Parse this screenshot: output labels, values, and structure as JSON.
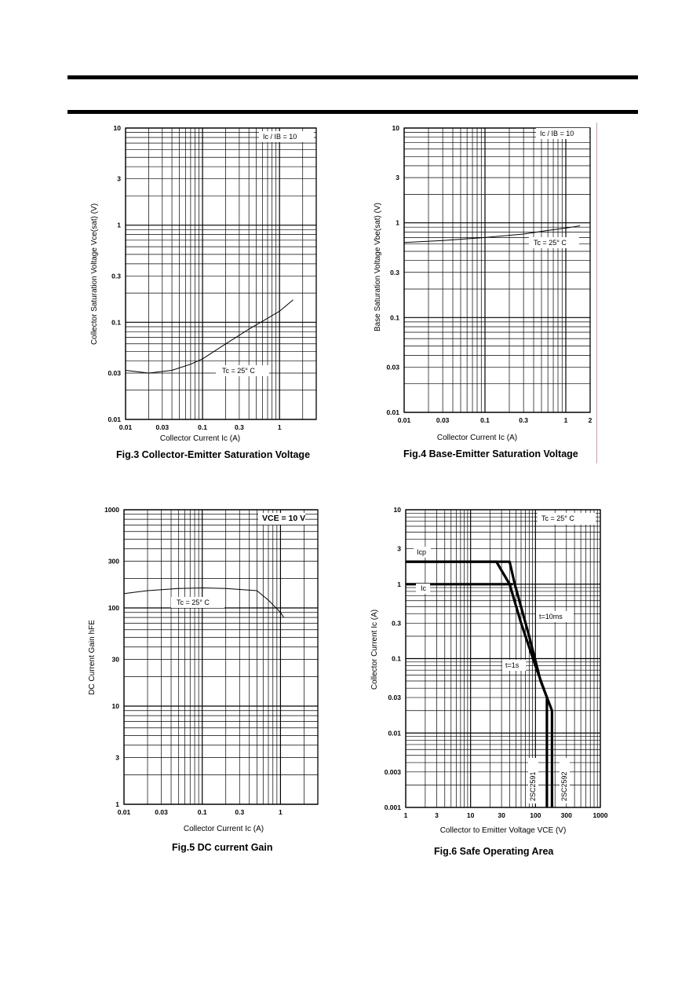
{
  "captions": {
    "fig3": "Fig.3 Collector-Emitter Saturation Voltage",
    "fig4": "Fig.4 Base-Emitter Saturation Voltage",
    "fig5": "Fig.5 DC current Gain",
    "fig6": "Fig.6  Safe Operating Area"
  },
  "chart_data": [
    {
      "id": "fig3",
      "type": "line",
      "xscale": "log",
      "yscale": "log",
      "xlim": [
        0.01,
        3
      ],
      "ylim": [
        0.01,
        10
      ],
      "xticks": [
        0.01,
        0.03,
        0.1,
        0.3,
        1
      ],
      "xticklabels": [
        "0.01",
        "0.03",
        "0.1",
        "0.3",
        "1"
      ],
      "yticks": [
        0.01,
        0.03,
        0.1,
        0.3,
        1,
        3,
        10
      ],
      "yticklabels": [
        "0.01",
        "0.03",
        "0.1",
        "0.3",
        "1",
        "3",
        "10"
      ],
      "xlabel": "Collector Current  Ic  (A)",
      "ylabel": "Collector Saturation Voltage  Vce(sat)  (V)",
      "annotations": [
        "Ic / IB = 10",
        "Tc = 25° C"
      ],
      "series": [
        {
          "x": [
            0.01,
            0.02,
            0.04,
            0.07,
            0.1,
            0.2,
            0.4,
            0.7,
            1.0,
            1.5
          ],
          "y": [
            0.032,
            0.03,
            0.032,
            0.037,
            0.042,
            0.06,
            0.085,
            0.11,
            0.13,
            0.17
          ]
        }
      ]
    },
    {
      "id": "fig4",
      "type": "line",
      "xscale": "log",
      "yscale": "log",
      "xlim": [
        0.01,
        2
      ],
      "ylim": [
        0.01,
        10
      ],
      "xticks": [
        0.01,
        0.03,
        0.1,
        0.3,
        1,
        2
      ],
      "xticklabels": [
        "0.01",
        "0.03",
        "0.1",
        "0.3",
        "1",
        "2"
      ],
      "yticks": [
        0.01,
        0.03,
        0.1,
        0.3,
        1,
        3,
        10
      ],
      "yticklabels": [
        "0.01",
        "0.03",
        "0.1",
        "0.3",
        "1",
        "3",
        "10"
      ],
      "xlabel": "Collector Current  Ic  (A)",
      "ylabel": "Base Saturation Voltage  Vbe(sat)  (V)",
      "annotations": [
        "Ic / IB = 10",
        "Tc = 25° C"
      ],
      "series": [
        {
          "x": [
            0.01,
            0.03,
            0.1,
            0.3,
            0.6,
            1.0,
            1.5
          ],
          "y": [
            0.62,
            0.65,
            0.7,
            0.76,
            0.83,
            0.88,
            0.93
          ]
        }
      ]
    },
    {
      "id": "fig5",
      "type": "line",
      "xscale": "log",
      "yscale": "log",
      "xlim": [
        0.01,
        3
      ],
      "ylim": [
        1,
        1000
      ],
      "xticks": [
        0.01,
        0.03,
        0.1,
        0.3,
        1
      ],
      "xticklabels": [
        "0.01",
        "0.03",
        "0.1",
        "0.3",
        "1"
      ],
      "yticks": [
        1,
        3,
        10,
        30,
        100,
        300,
        1000
      ],
      "yticklabels": [
        "1",
        "3",
        "10",
        "30",
        "100",
        "300",
        "1000"
      ],
      "xlabel": "Collector Current  Ic  (A)",
      "ylabel": "DC Current Gain  hFE",
      "annotations": [
        "VCE = 10 V",
        "Tc = 25° C"
      ],
      "series": [
        {
          "x": [
            0.01,
            0.02,
            0.05,
            0.1,
            0.2,
            0.5,
            0.7,
            1.0,
            1.1
          ],
          "y": [
            140,
            150,
            158,
            160,
            158,
            150,
            120,
            90,
            80
          ]
        }
      ]
    },
    {
      "id": "fig6",
      "type": "line",
      "xscale": "log",
      "yscale": "log",
      "xlim": [
        1,
        1000
      ],
      "ylim": [
        0.001,
        10
      ],
      "xticks": [
        1,
        3,
        10,
        30,
        100,
        300,
        1000
      ],
      "xticklabels": [
        "1",
        "3",
        "10",
        "30",
        "100",
        "300",
        "1000"
      ],
      "yticks": [
        0.001,
        0.003,
        0.01,
        0.03,
        0.1,
        0.3,
        1,
        3,
        10
      ],
      "yticklabels": [
        "0.001",
        "0.003",
        "0.01",
        "0.03",
        "0.1",
        "0.3",
        "1",
        "3",
        "10"
      ],
      "xlabel": "Collector to Emitter Voltage  VCE  (V)",
      "ylabel": "Collector Current  Ic  (A)",
      "annotations": [
        "Tc = 25° C",
        "Icp",
        "Ic",
        "t=10ms",
        "t=1s",
        "2SC2591",
        "2SC2592"
      ],
      "series": [
        {
          "name": "t=10ms",
          "x": [
            1,
            40,
            48,
            80,
            120,
            180,
            180
          ],
          "y": [
            2,
            2,
            1,
            0.2,
            0.05,
            0.02,
            0.001
          ]
        },
        {
          "name": "t=1s",
          "x": [
            1,
            25,
            40,
            60,
            100,
            150,
            150
          ],
          "y": [
            2,
            2,
            1,
            0.3,
            0.08,
            0.03,
            0.001
          ]
        },
        {
          "name": "Ic",
          "x": [
            1,
            45
          ],
          "y": [
            1,
            1
          ]
        }
      ]
    }
  ]
}
